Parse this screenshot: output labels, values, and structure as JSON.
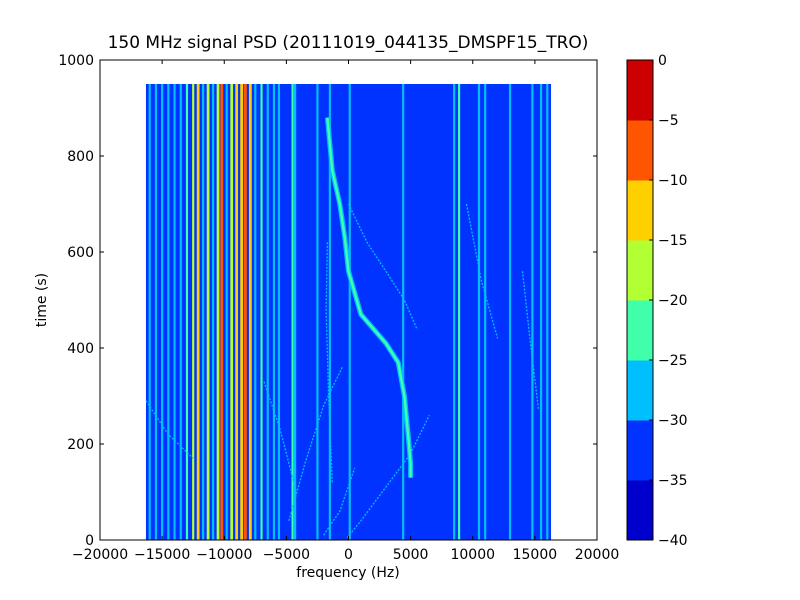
{
  "chart_data": {
    "type": "heatmap",
    "title": "150 MHz signal PSD (20111019_044135_DMSPF15_TRO)",
    "xlabel": "frequency (Hz)",
    "ylabel": "time (s)",
    "xlim": [
      -20000,
      20000
    ],
    "ylim": [
      0,
      1000
    ],
    "x_ticks": [
      -20000,
      -15000,
      -10000,
      -5000,
      0,
      5000,
      10000,
      15000,
      20000
    ],
    "x_tick_labels": [
      "−20000",
      "−15000",
      "−10000",
      "−5000",
      "0",
      "5000",
      "10000",
      "15000",
      "20000"
    ],
    "y_ticks": [
      0,
      200,
      400,
      600,
      800,
      1000
    ],
    "y_tick_labels": [
      "0",
      "200",
      "400",
      "600",
      "800",
      "1000"
    ],
    "data_extent": {
      "x": [
        -16300,
        16300
      ],
      "y": [
        0,
        950
      ]
    },
    "background_level_db": -33,
    "colorbar": {
      "levels": [
        -40,
        -35,
        -30,
        -25,
        -20,
        -15,
        -10,
        -5,
        0
      ],
      "tick_labels": [
        "−40",
        "−35",
        "−30",
        "−25",
        "−20",
        "−15",
        "−10",
        "−5",
        "0"
      ],
      "colors": [
        "#0000cc",
        "#0033ff",
        "#00bfff",
        "#40ffaa",
        "#b2ff33",
        "#ffd000",
        "#ff5500",
        "#cc0000"
      ]
    },
    "vertical_lines": [
      {
        "freq_hz": -16000,
        "level_db": -28
      },
      {
        "freq_hz": -15500,
        "level_db": -27
      },
      {
        "freq_hz": -15000,
        "level_db": -28
      },
      {
        "freq_hz": -14500,
        "level_db": -27
      },
      {
        "freq_hz": -14000,
        "level_db": -26
      },
      {
        "freq_hz": -13500,
        "level_db": -28
      },
      {
        "freq_hz": -13000,
        "level_db": -25
      },
      {
        "freq_hz": -12500,
        "level_db": -20
      },
      {
        "freq_hz": -12100,
        "level_db": -14
      },
      {
        "freq_hz": -11700,
        "level_db": -28
      },
      {
        "freq_hz": -11300,
        "level_db": -18
      },
      {
        "freq_hz": -10900,
        "level_db": -27
      },
      {
        "freq_hz": -10500,
        "level_db": -16
      },
      {
        "freq_hz": -10200,
        "level_db": -10
      },
      {
        "freq_hz": -9800,
        "level_db": -26
      },
      {
        "freq_hz": -9400,
        "level_db": -18
      },
      {
        "freq_hz": -9000,
        "level_db": -14
      },
      {
        "freq_hz": -8600,
        "level_db": -12
      },
      {
        "freq_hz": -8300,
        "level_db": -8
      },
      {
        "freq_hz": -7900,
        "level_db": -15
      },
      {
        "freq_hz": -7500,
        "level_db": -27
      },
      {
        "freq_hz": -7000,
        "level_db": -22
      },
      {
        "freq_hz": -6500,
        "level_db": -28
      },
      {
        "freq_hz": -6000,
        "level_db": -29
      },
      {
        "freq_hz": -5600,
        "level_db": -28
      },
      {
        "freq_hz": -4500,
        "level_db": -22
      },
      {
        "freq_hz": -4300,
        "level_db": -26
      },
      {
        "freq_hz": -2500,
        "level_db": -29
      },
      {
        "freq_hz": -1500,
        "level_db": -28
      },
      {
        "freq_hz": 100,
        "level_db": -26
      },
      {
        "freq_hz": 4400,
        "level_db": -29
      },
      {
        "freq_hz": 8500,
        "level_db": -26
      },
      {
        "freq_hz": 8900,
        "level_db": -22
      },
      {
        "freq_hz": 10500,
        "level_db": -29
      },
      {
        "freq_hz": 11000,
        "level_db": -30
      },
      {
        "freq_hz": 13000,
        "level_db": -26
      },
      {
        "freq_hz": 14800,
        "level_db": -29
      },
      {
        "freq_hz": 15500,
        "level_db": -28
      },
      {
        "freq_hz": 16000,
        "level_db": -27
      }
    ],
    "doppler_trace": {
      "level_db": -22,
      "points": [
        [
          -1700,
          880
        ],
        [
          -1300,
          770
        ],
        [
          -700,
          700
        ],
        [
          -300,
          630
        ],
        [
          0,
          560
        ],
        [
          1000,
          470
        ],
        [
          2000,
          440
        ],
        [
          3000,
          410
        ],
        [
          4000,
          370
        ],
        [
          4500,
          300
        ],
        [
          4800,
          220
        ],
        [
          5000,
          160
        ],
        [
          5000,
          130
        ]
      ]
    },
    "faint_traces": [
      {
        "level_db": -27,
        "points": [
          [
            -100,
            5
          ],
          [
            1000,
            40
          ],
          [
            3000,
            110
          ],
          [
            5000,
            180
          ],
          [
            6500,
            260
          ]
        ]
      },
      {
        "level_db": -28,
        "points": [
          [
            0,
            700
          ],
          [
            1500,
            620
          ],
          [
            3000,
            560
          ],
          [
            4500,
            500
          ],
          [
            5500,
            440
          ]
        ]
      },
      {
        "level_db": -28,
        "points": [
          [
            -4800,
            40
          ],
          [
            -3500,
            160
          ],
          [
            -2000,
            280
          ],
          [
            -500,
            360
          ]
        ]
      },
      {
        "level_db": -28,
        "points": [
          [
            -16300,
            290
          ],
          [
            -14500,
            220
          ],
          [
            -12500,
            170
          ]
        ]
      },
      {
        "level_db": -29,
        "points": [
          [
            -2000,
            10
          ],
          [
            -700,
            60
          ],
          [
            500,
            150
          ]
        ]
      },
      {
        "level_db": -28,
        "points": [
          [
            -1700,
            620
          ],
          [
            -1800,
            480
          ],
          [
            -1600,
            300
          ],
          [
            -1300,
            120
          ]
        ]
      },
      {
        "level_db": -29,
        "points": [
          [
            -6800,
            330
          ],
          [
            -5500,
            230
          ],
          [
            -4200,
            100
          ]
        ]
      },
      {
        "level_db": -29,
        "points": [
          [
            14000,
            560
          ],
          [
            14600,
            420
          ],
          [
            15300,
            270
          ]
        ]
      },
      {
        "level_db": -29,
        "points": [
          [
            9500,
            700
          ],
          [
            10700,
            540
          ],
          [
            12000,
            420
          ]
        ]
      }
    ]
  }
}
